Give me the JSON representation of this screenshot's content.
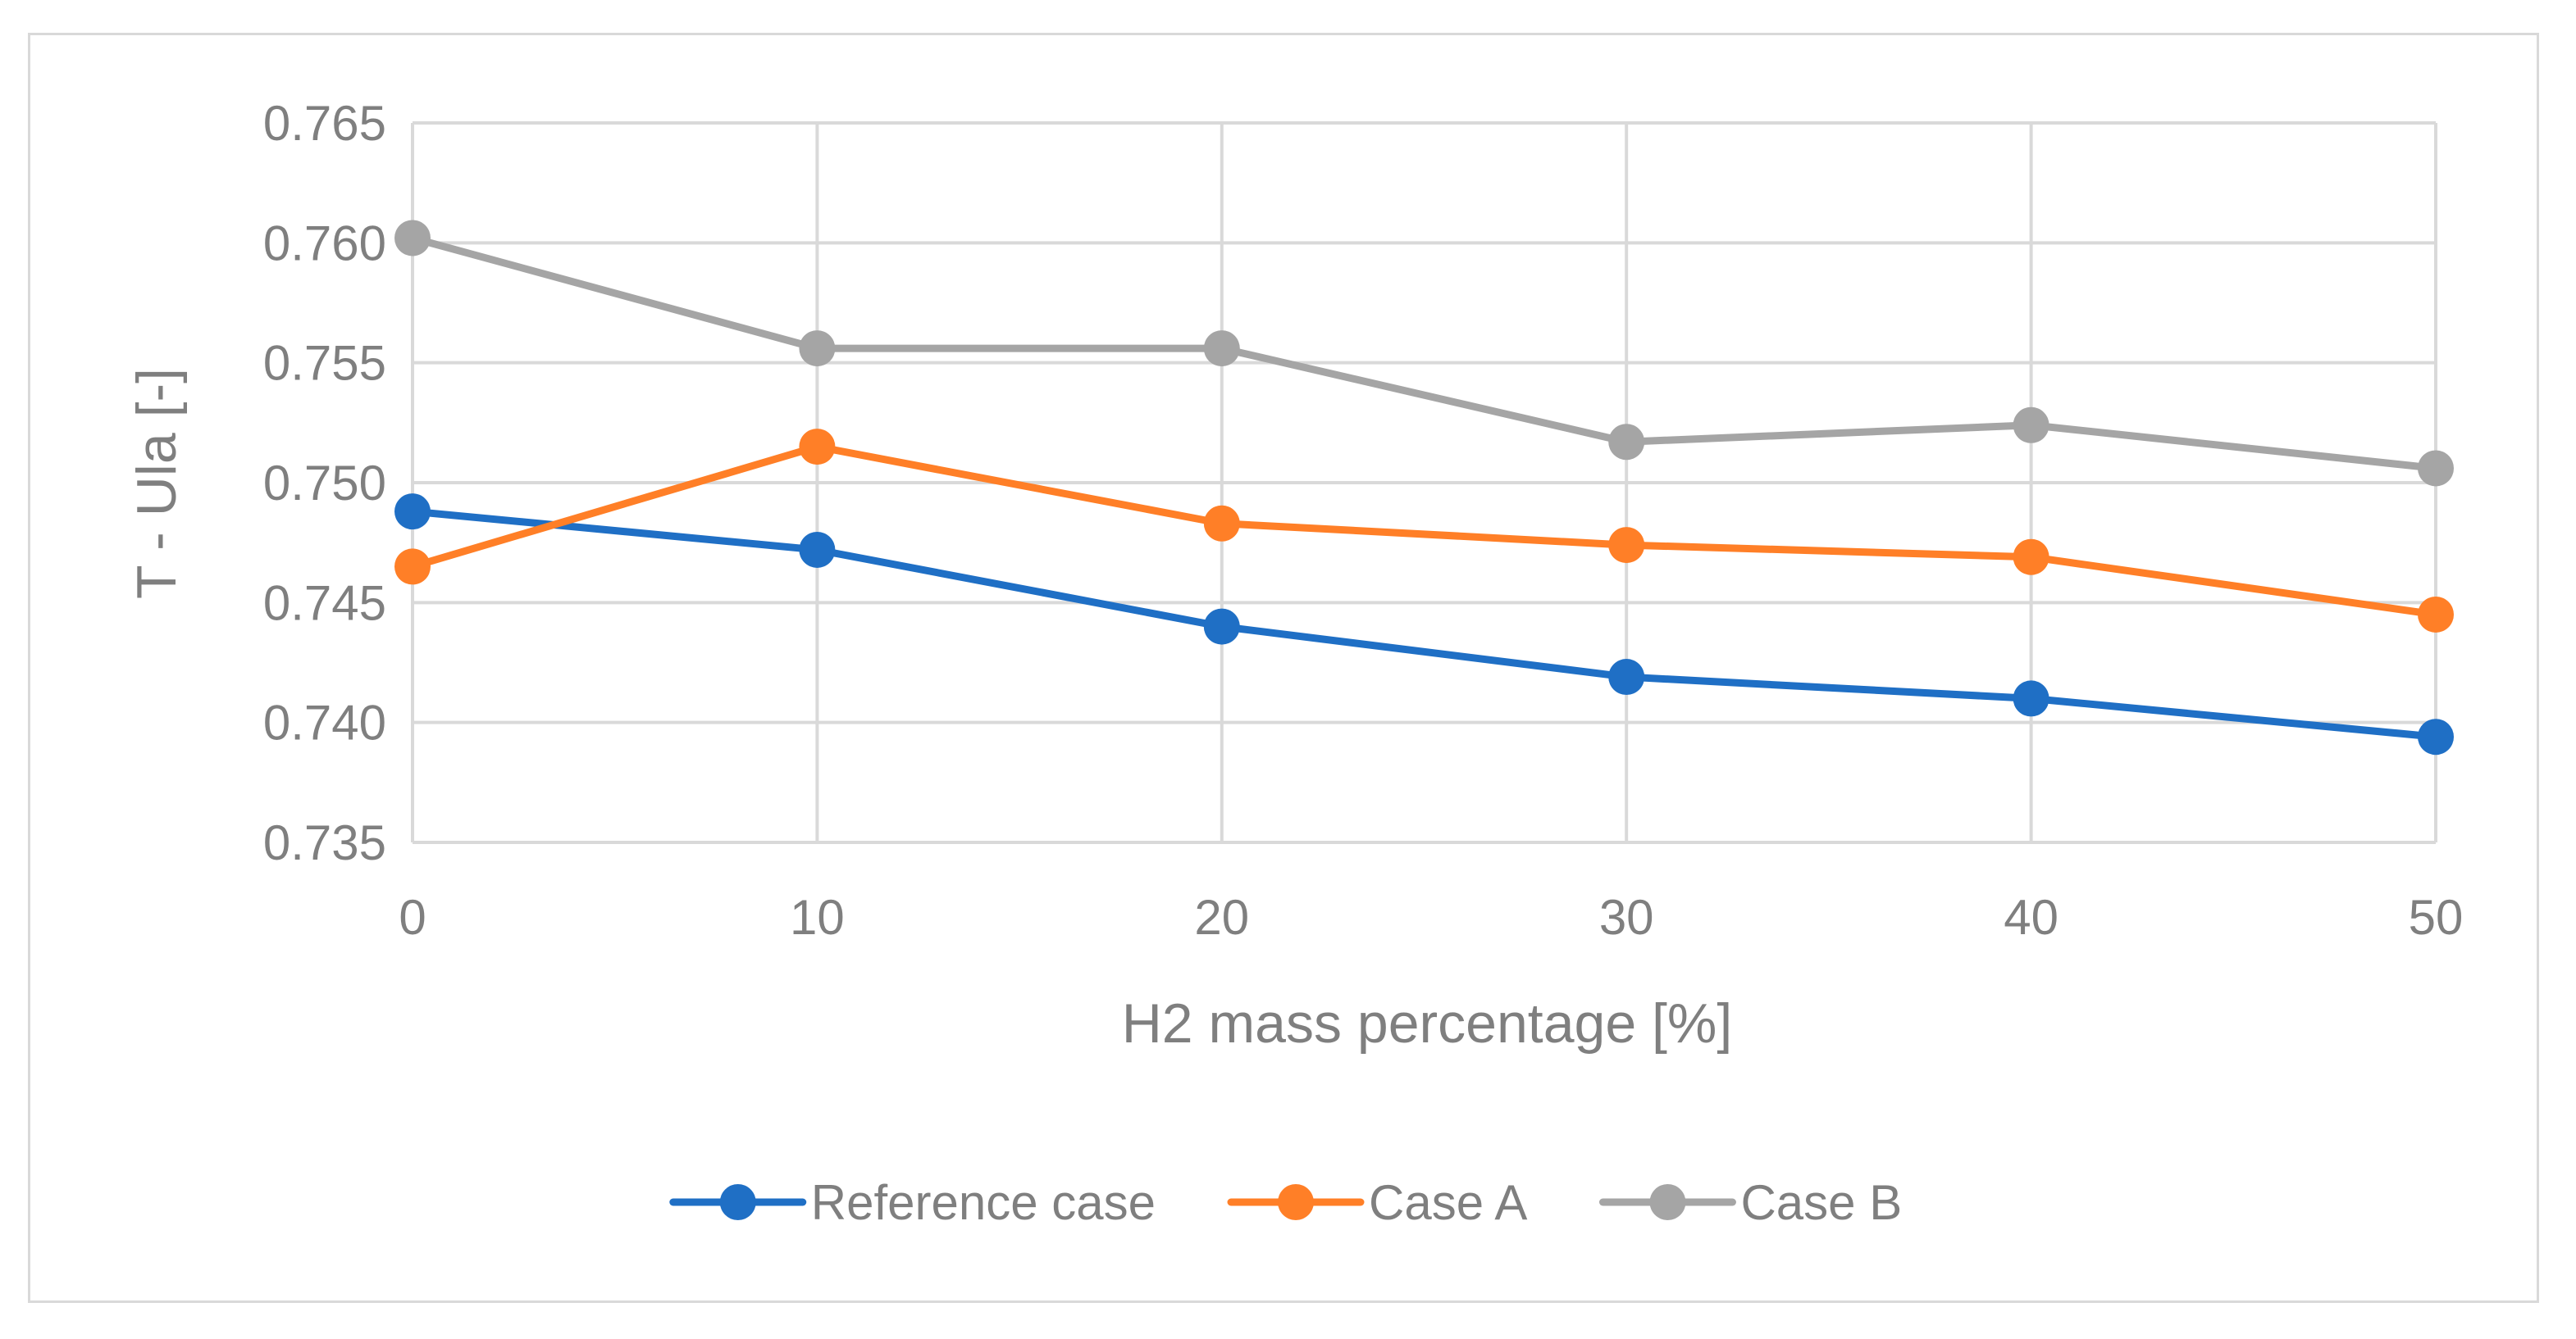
{
  "chart_data": {
    "type": "line",
    "title": "",
    "xlabel": "H2 mass percentage [%]",
    "ylabel": "T - Ula [-]",
    "x": [
      0,
      10,
      20,
      30,
      40,
      50
    ],
    "x_tick_labels": [
      "0",
      "10",
      "20",
      "30",
      "40",
      "50"
    ],
    "y_tick_labels": [
      "0.735",
      "0.740",
      "0.745",
      "0.750",
      "0.755",
      "0.760",
      "0.765"
    ],
    "ylim": [
      0.735,
      0.765
    ],
    "xlim": [
      0,
      50
    ],
    "grid": true,
    "legend_position": "bottom",
    "series": [
      {
        "name": "Reference case",
        "color": "#1f6fc5",
        "values": [
          0.7488,
          0.7472,
          0.744,
          0.7419,
          0.741,
          0.7394
        ]
      },
      {
        "name": "Case A",
        "color": "#ff7f27",
        "values": [
          0.7465,
          0.7515,
          0.7483,
          0.7474,
          0.7469,
          0.7445
        ]
      },
      {
        "name": "Case B",
        "color": "#a5a5a5",
        "values": [
          0.7602,
          0.7556,
          0.7556,
          0.7517,
          0.7524,
          0.7506
        ]
      }
    ]
  }
}
